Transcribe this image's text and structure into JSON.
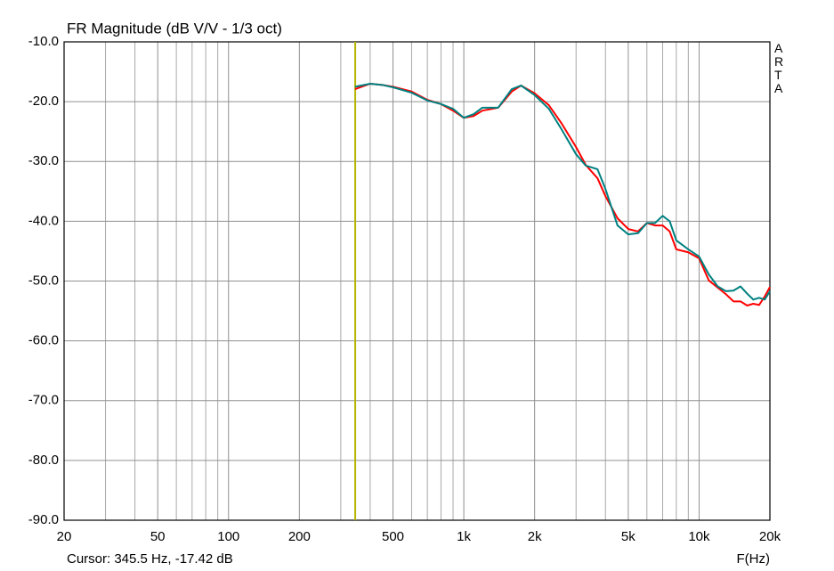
{
  "chart_data": {
    "type": "line",
    "title": "FR Magnitude (dB V/V - 1/3 oct)",
    "xlabel": "F(Hz)",
    "watermark": "ARTA",
    "cursor": {
      "label": "Cursor: 345.5 Hz, -17.42 dB",
      "x": 345.5,
      "color": "#b4b400"
    },
    "log_x": true,
    "grid": true,
    "xlim": [
      20,
      20000
    ],
    "ylim": [
      -90,
      -10
    ],
    "xticks": [
      20,
      50,
      100,
      200,
      500,
      {
        "value": 1000,
        "label": "1k"
      },
      {
        "value": 2000,
        "label": "2k"
      },
      {
        "value": 5000,
        "label": "5k"
      },
      {
        "value": 10000,
        "label": "10k"
      },
      {
        "value": 20000,
        "label": "20k"
      }
    ],
    "xminorticks": [
      30,
      40,
      60,
      70,
      80,
      90,
      300,
      400,
      600,
      700,
      800,
      900,
      3000,
      4000,
      6000,
      7000,
      8000,
      9000
    ],
    "yticks": [
      {
        "value": -10,
        "label": "-10.0"
      },
      {
        "value": -20,
        "label": "-20.0"
      },
      {
        "value": -30,
        "label": "-30.0"
      },
      {
        "value": -40,
        "label": "-40.0"
      },
      {
        "value": -50,
        "label": "-50.0"
      },
      {
        "value": -60,
        "label": "-60.0"
      },
      {
        "value": -70,
        "label": "-70.0"
      },
      {
        "value": -80,
        "label": "-80.0"
      },
      {
        "value": -90,
        "label": "-90.0"
      }
    ],
    "x": [
      345,
      400,
      450,
      500,
      600,
      700,
      800,
      900,
      1000,
      1100,
      1200,
      1400,
      1600,
      1750,
      2000,
      2300,
      2600,
      3000,
      3300,
      3700,
      4000,
      4500,
      5000,
      5500,
      6000,
      6500,
      7000,
      7500,
      8000,
      9000,
      10000,
      11000,
      12000,
      13000,
      14000,
      15000,
      16000,
      17000,
      18000,
      19000,
      20000
    ],
    "series": [
      {
        "color": "#ff0000",
        "values": [
          -17.9,
          -17.0,
          -17.2,
          -17.5,
          -18.3,
          -19.7,
          -20.4,
          -21.5,
          -22.7,
          -22.4,
          -21.5,
          -21.0,
          -18.3,
          -17.3,
          -18.6,
          -20.6,
          -23.6,
          -27.6,
          -30.6,
          -32.8,
          -35.8,
          -39.5,
          -41.3,
          -41.7,
          -40.3,
          -40.7,
          -40.7,
          -41.7,
          -44.7,
          -45.2,
          -46.2,
          -49.9,
          -51.1,
          -52.2,
          -53.4,
          -53.4,
          -54.1,
          -53.8,
          -54.0,
          -52.6,
          -51.0
        ]
      },
      {
        "color": "#008080",
        "values": [
          -17.5,
          -17.0,
          -17.2,
          -17.6,
          -18.5,
          -19.8,
          -20.4,
          -21.2,
          -22.7,
          -22.1,
          -21.0,
          -21.0,
          -17.9,
          -17.3,
          -18.9,
          -21.2,
          -24.6,
          -28.8,
          -30.7,
          -31.3,
          -34.6,
          -40.7,
          -42.2,
          -42.0,
          -40.3,
          -40.3,
          -39.1,
          -40.0,
          -43.2,
          -44.7,
          -45.9,
          -48.9,
          -50.9,
          -51.7,
          -51.6,
          -50.9,
          -52.1,
          -53.1,
          -52.8,
          -53.1,
          -51.7
        ]
      }
    ]
  }
}
